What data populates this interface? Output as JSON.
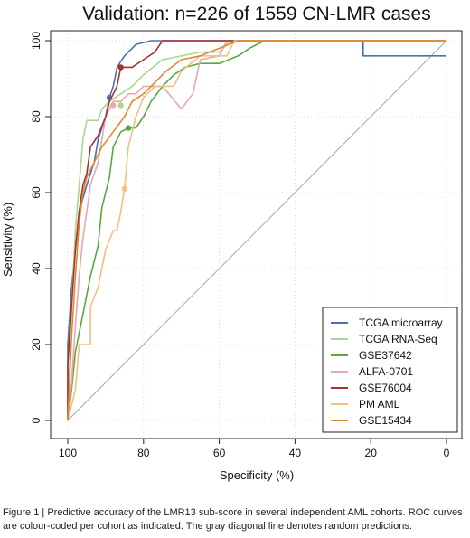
{
  "chart_data": {
    "type": "line",
    "title": "Validation: n=226 of 1559 CN-LMR cases",
    "xlabel": "Specificity (%)",
    "ylabel": "Sensitivity (%)",
    "xlim": [
      100,
      0
    ],
    "ylim": [
      0,
      100
    ],
    "x_reversed": true,
    "xticks": [
      100,
      80,
      60,
      40,
      20,
      0
    ],
    "yticks": [
      0,
      20,
      40,
      60,
      80,
      100
    ],
    "grid": true,
    "legend_position": "bottom-right",
    "reference_line": {
      "from": [
        100,
        0
      ],
      "to": [
        0,
        100
      ],
      "color": "#a8a8a8"
    },
    "series": [
      {
        "name": "TCGA microarray",
        "color": "#4a72b0",
        "points": [
          [
            100,
            0
          ],
          [
            100,
            20
          ],
          [
            99,
            35
          ],
          [
            98,
            45
          ],
          [
            97,
            55
          ],
          [
            95,
            62
          ],
          [
            93,
            68
          ],
          [
            92,
            74
          ],
          [
            90,
            80
          ],
          [
            89,
            85
          ],
          [
            88,
            88
          ],
          [
            87,
            93
          ],
          [
            85,
            96
          ],
          [
            82,
            99
          ],
          [
            78,
            100
          ],
          [
            40,
            100
          ],
          [
            22,
            100
          ],
          [
            22,
            96
          ],
          [
            0,
            96
          ]
        ],
        "marker": [
          89,
          85
        ]
      },
      {
        "name": "TCGA RNA-Seq",
        "color": "#a8d890",
        "points": [
          [
            100,
            0
          ],
          [
            99,
            30
          ],
          [
            98,
            50
          ],
          [
            97,
            62
          ],
          [
            96,
            74
          ],
          [
            95,
            79
          ],
          [
            92,
            79
          ],
          [
            91,
            82
          ],
          [
            89,
            84
          ],
          [
            86,
            86
          ],
          [
            83,
            88
          ],
          [
            80,
            91
          ],
          [
            75,
            95
          ],
          [
            65,
            97
          ],
          [
            60,
            97
          ],
          [
            57,
            100
          ],
          [
            0,
            100
          ]
        ],
        "marker": [
          86,
          83
        ]
      },
      {
        "name": "GSE37642",
        "color": "#5aa840",
        "points": [
          [
            100,
            0
          ],
          [
            99,
            8
          ],
          [
            98,
            18
          ],
          [
            96,
            28
          ],
          [
            94,
            38
          ],
          [
            92,
            46
          ],
          [
            91,
            56
          ],
          [
            89,
            64
          ],
          [
            88,
            72
          ],
          [
            86,
            76
          ],
          [
            84,
            77
          ],
          [
            82,
            77
          ],
          [
            80,
            80
          ],
          [
            78,
            84
          ],
          [
            75,
            88
          ],
          [
            72,
            91
          ],
          [
            69,
            93
          ],
          [
            65,
            94
          ],
          [
            60,
            94
          ],
          [
            55,
            96
          ],
          [
            52,
            98
          ],
          [
            48,
            100
          ],
          [
            0,
            100
          ]
        ],
        "marker": [
          84,
          77
        ]
      },
      {
        "name": "ALFA-0701",
        "color": "#e8a8b0",
        "points": [
          [
            100,
            0
          ],
          [
            99,
            10
          ],
          [
            98,
            25
          ],
          [
            97,
            38
          ],
          [
            96,
            48
          ],
          [
            95,
            55
          ],
          [
            94,
            62
          ],
          [
            92,
            68
          ],
          [
            91,
            74
          ],
          [
            90,
            80
          ],
          [
            88,
            84
          ],
          [
            86,
            84
          ],
          [
            84,
            86
          ],
          [
            82,
            86
          ],
          [
            80,
            88
          ],
          [
            75,
            88
          ],
          [
            70,
            82
          ],
          [
            67,
            86
          ],
          [
            65,
            95
          ],
          [
            60,
            96
          ],
          [
            58,
            100
          ],
          [
            0,
            100
          ]
        ],
        "marker": [
          88,
          83
        ]
      },
      {
        "name": "GSE76004",
        "color": "#a83030",
        "points": [
          [
            100,
            0
          ],
          [
            100,
            15
          ],
          [
            99,
            30
          ],
          [
            98,
            45
          ],
          [
            97,
            55
          ],
          [
            96,
            62
          ],
          [
            95,
            65
          ],
          [
            94,
            72
          ],
          [
            92,
            75
          ],
          [
            90,
            80
          ],
          [
            89,
            84
          ],
          [
            87,
            88
          ],
          [
            86,
            93
          ],
          [
            83,
            93
          ],
          [
            80,
            95
          ],
          [
            77,
            97
          ],
          [
            75,
            100
          ],
          [
            0,
            100
          ]
        ],
        "marker": [
          86,
          93
        ]
      },
      {
        "name": "PM AML",
        "color": "#f0c080",
        "points": [
          [
            100,
            0
          ],
          [
            98,
            8
          ],
          [
            97,
            20
          ],
          [
            94,
            20
          ],
          [
            94,
            30
          ],
          [
            92,
            35
          ],
          [
            90,
            45
          ],
          [
            88,
            50
          ],
          [
            87,
            50
          ],
          [
            86,
            55
          ],
          [
            85,
            61
          ],
          [
            84,
            72
          ],
          [
            82,
            80
          ],
          [
            80,
            85
          ],
          [
            77,
            88
          ],
          [
            72,
            88
          ],
          [
            70,
            92
          ],
          [
            65,
            96
          ],
          [
            58,
            96
          ],
          [
            56,
            100
          ],
          [
            0,
            100
          ]
        ],
        "marker": [
          85,
          61
        ]
      },
      {
        "name": "GSE15434",
        "color": "#e08a30",
        "points": [
          [
            100,
            0
          ],
          [
            99,
            22
          ],
          [
            98,
            38
          ],
          [
            97,
            52
          ],
          [
            96,
            60
          ],
          [
            95,
            64
          ],
          [
            93,
            68
          ],
          [
            91,
            72
          ],
          [
            88,
            76
          ],
          [
            85,
            80
          ],
          [
            83,
            84
          ],
          [
            80,
            86
          ],
          [
            77,
            89
          ],
          [
            74,
            92
          ],
          [
            70,
            95
          ],
          [
            65,
            96
          ],
          [
            60,
            98
          ],
          [
            55,
            100
          ],
          [
            0,
            100
          ]
        ],
        "marker": null
      }
    ]
  },
  "caption": "Figure 1 | Predictive accuracy of the LMR13 sub-score in several independent AML cohorts. ROC curves are colour-coded per cohort as indicated. The gray diagonal line denotes random predictions."
}
